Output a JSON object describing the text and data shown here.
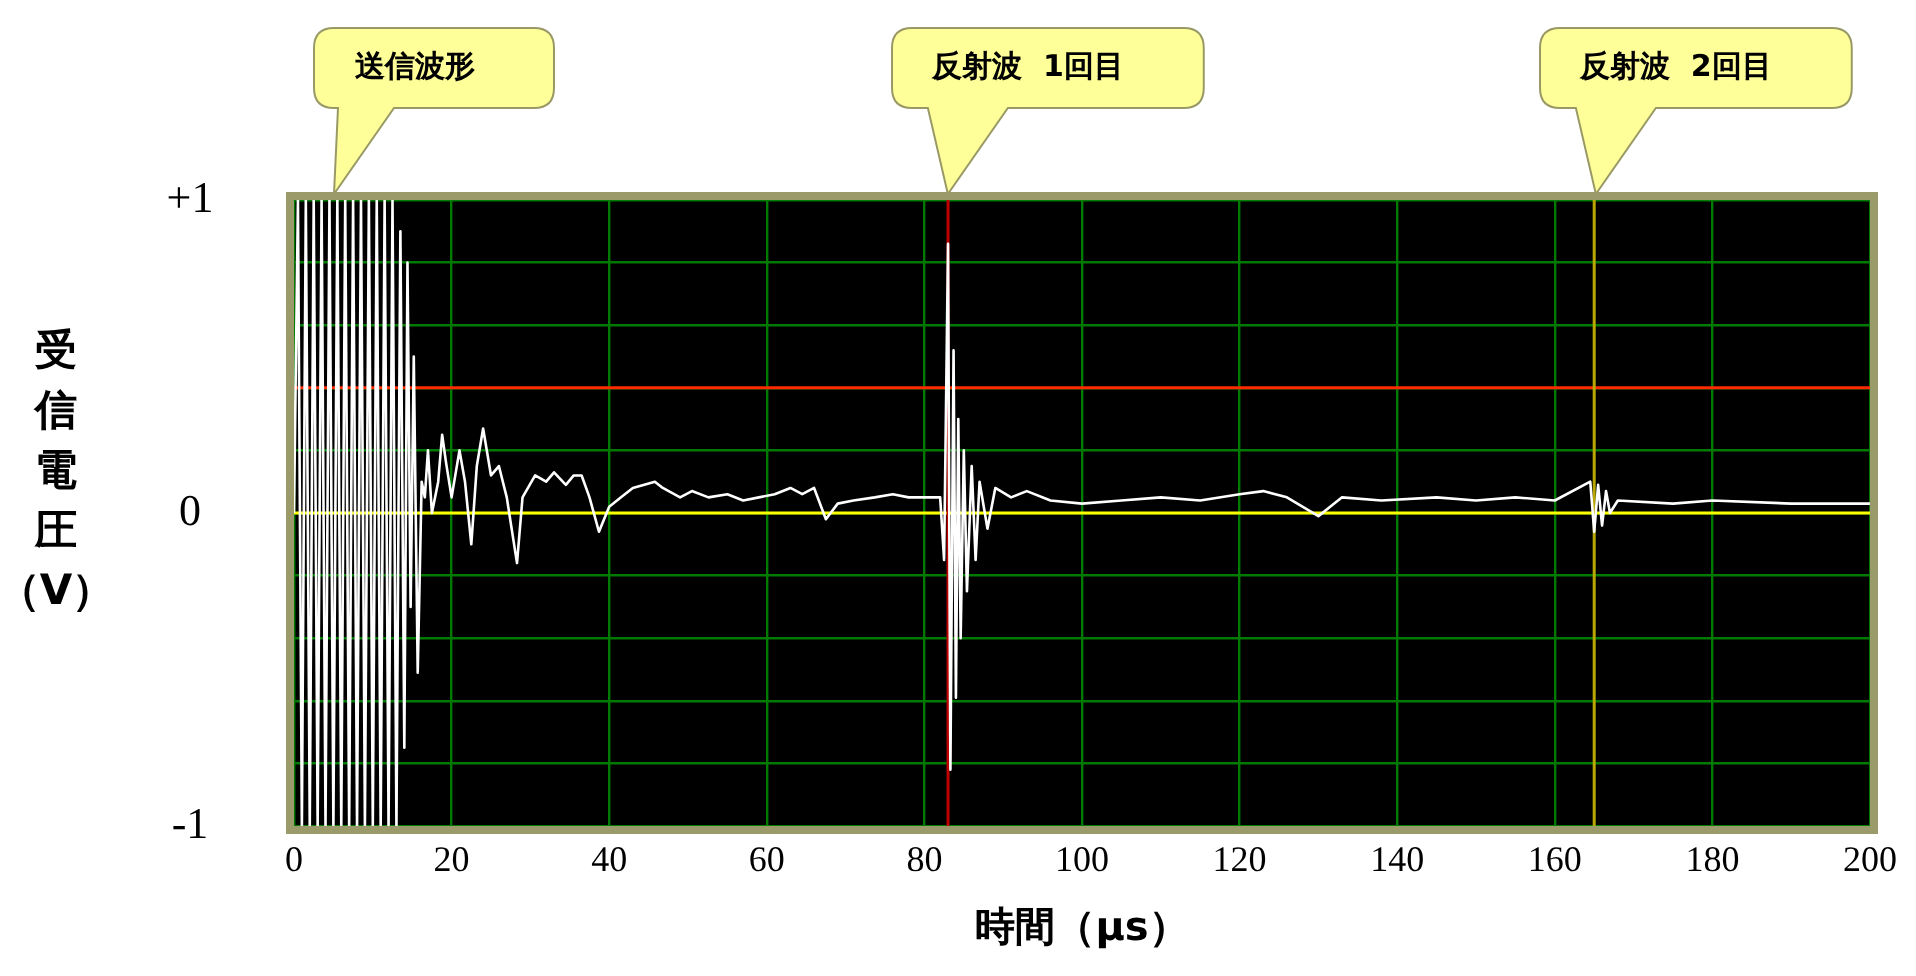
{
  "chart_data": {
    "type": "line",
    "xlabel": "時間（μs）",
    "ylabel": "受信電圧（V）",
    "annotations": [
      "送信波形",
      "反射波  1回目",
      "反射波  2回目"
    ],
    "x": [
      0,
      0.5,
      1,
      1.5,
      2,
      2.5,
      3,
      3.5,
      4,
      4.5,
      5,
      5.5,
      6,
      6.5,
      7,
      7.5,
      8,
      8.5,
      9,
      9.5,
      10,
      10.5,
      11,
      11.5,
      12,
      12.5,
      13,
      13.5,
      14,
      14.4,
      14.8,
      15.2,
      15.7,
      16.2,
      16.6,
      17,
      17.5,
      18.3,
      18.8,
      19.3,
      20,
      21,
      21.7,
      22.5,
      23.2,
      24,
      25,
      26,
      27,
      28.3,
      29,
      30.6,
      32,
      33,
      34.5,
      35.5,
      36.5,
      37.5,
      38.7,
      40,
      41.5,
      43,
      45.8,
      46.8,
      49,
      50.5,
      52.6,
      55,
      57,
      59,
      61,
      63,
      64.5,
      66,
      67.5,
      69,
      71,
      73.7,
      76,
      78,
      80,
      82,
      82.5,
      83,
      83.3,
      83.7,
      84,
      84.3,
      84.6,
      85,
      85.4,
      86,
      86.5,
      87,
      88,
      89,
      91,
      93,
      96,
      100,
      105,
      110,
      115,
      120,
      123,
      126,
      130,
      133,
      138,
      145,
      150,
      155,
      160,
      164.5,
      165,
      165.5,
      166,
      166.5,
      167,
      168,
      175,
      180,
      190,
      200
    ],
    "series": [
      {
        "color": "#ffffff",
        "values": [
          0,
          1,
          -1,
          1,
          -1,
          1,
          -1,
          1,
          -1,
          1,
          -1,
          1,
          -1,
          1,
          -1,
          1,
          -1,
          1,
          -1,
          1,
          -1,
          1,
          -1,
          1,
          -1,
          1,
          -1,
          0.9,
          -0.75,
          0.8,
          -0.3,
          0.5,
          -0.51,
          0.1,
          0.05,
          0.2,
          0,
          0.1,
          0.25,
          0.16,
          0.05,
          0.2,
          0.1,
          -0.1,
          0.15,
          0.27,
          0.12,
          0.15,
          0.05,
          -0.16,
          0.05,
          0.12,
          0.1,
          0.13,
          0.09,
          0.12,
          0.12,
          0.05,
          -0.06,
          0.02,
          0.05,
          0.08,
          0.1,
          0.08,
          0.05,
          0.07,
          0.05,
          0.06,
          0.04,
          0.05,
          0.06,
          0.08,
          0.06,
          0.08,
          -0.02,
          0.03,
          0.04,
          0.05,
          0.06,
          0.05,
          0.05,
          0.05,
          -0.15,
          0.86,
          -0.82,
          0.52,
          -0.59,
          0.3,
          -0.4,
          0.2,
          -0.25,
          0.15,
          -0.15,
          0.1,
          -0.05,
          0.08,
          0.05,
          0.07,
          0.04,
          0.03,
          0.04,
          0.05,
          0.04,
          0.06,
          0.07,
          0.05,
          -0.01,
          0.05,
          0.04,
          0.05,
          0.04,
          0.05,
          0.04,
          0.1,
          -0.06,
          0.09,
          -0.04,
          0.07,
          0,
          0.04,
          0.03,
          0.04,
          0.03,
          0.03
        ]
      }
    ],
    "xlim": [
      0,
      200
    ],
    "ylim": [
      -1,
      1
    ],
    "xticks": [
      0,
      20,
      40,
      60,
      80,
      100,
      120,
      140,
      160,
      180,
      200
    ],
    "yticks": [
      -1,
      {
        "value": -0.8,
        "label": null
      },
      {
        "value": -0.6,
        "label": null
      },
      {
        "value": -0.4,
        "label": null
      },
      {
        "value": -0.2,
        "label": null
      },
      0,
      {
        "value": 0.2,
        "label": null
      },
      {
        "value": 0.4,
        "label": null
      },
      {
        "value": 0.6,
        "label": null
      },
      {
        "value": 0.8,
        "label": null
      },
      {
        "value": 1,
        "label": "+1"
      }
    ],
    "grid": true,
    "ref_lines": [
      {
        "axis": "y",
        "value": 0.4,
        "color": "#ff2a00"
      },
      {
        "axis": "y",
        "value": 0,
        "color": "#ffff00"
      },
      {
        "axis": "x",
        "value": 83,
        "color": "#c00000"
      },
      {
        "axis": "x",
        "value": 165,
        "color": "#b8a800"
      }
    ]
  }
}
